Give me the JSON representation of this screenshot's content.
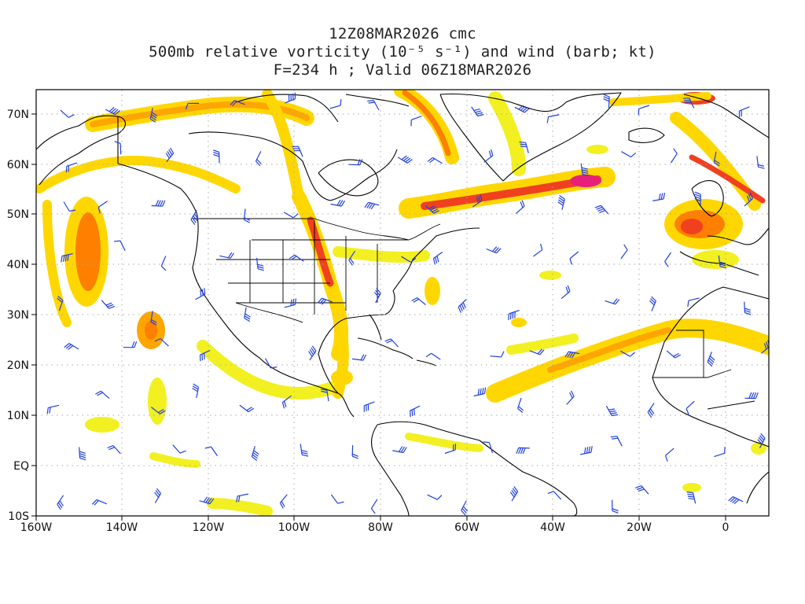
{
  "title": {
    "line1": "12Z08MAR2026 cmc",
    "line2": "500mb relative vorticity (10⁻⁵ s⁻¹) and wind (barb; kt)",
    "line3": "F=234 h ; Valid 06Z18MAR2026"
  },
  "axes": {
    "lat_labels": [
      "70N",
      "60N",
      "50N",
      "40N",
      "30N",
      "20N",
      "10N",
      "EQ",
      "10S"
    ],
    "lon_labels": [
      "160W",
      "140W",
      "120W",
      "100W",
      "80W",
      "60W",
      "40W",
      "20W",
      "0"
    ]
  },
  "colors": {
    "shade_light": "#f2f020",
    "shade_yellow": "#ffd700",
    "shade_orange": "#ffa500",
    "shade_dark_orange": "#ff7f00",
    "shade_red": "#f04020",
    "shade_magenta": "#e8207c",
    "barb": "#2040e0",
    "coast": "#000000",
    "grid": "#aaaaaa"
  },
  "map_extent": {
    "lon": [
      -160,
      10
    ],
    "lat": [
      -10,
      75
    ]
  }
}
